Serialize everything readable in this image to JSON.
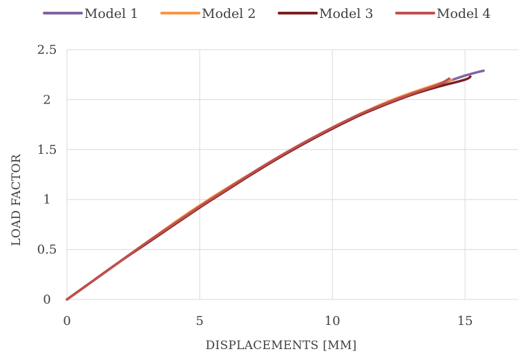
{
  "chart_data": {
    "type": "line",
    "title": "",
    "xlabel": "DISPLACEMENTS [MM]",
    "ylabel": "LOAD FACTOR",
    "xlim": [
      0,
      17
    ],
    "ylim": [
      0,
      2.5
    ],
    "xticks": [
      0,
      5,
      10,
      15
    ],
    "yticks": [
      0,
      0.5,
      1,
      1.5,
      2,
      2.5
    ],
    "xtick_labels": [
      "0",
      "5",
      "10",
      "15"
    ],
    "ytick_labels": [
      "0",
      "0.5",
      "1",
      "1.5",
      "2",
      "2.5"
    ],
    "grid": true,
    "legend_position": "top",
    "series": [
      {
        "name": "Model 1",
        "color": "#8064a2",
        "x": [
          0,
          1,
          2,
          3,
          4,
          5,
          6,
          7,
          8,
          9,
          10,
          11,
          12,
          13,
          14,
          15,
          15.7
        ],
        "y": [
          0,
          0.19,
          0.38,
          0.57,
          0.75,
          0.93,
          1.1,
          1.26,
          1.42,
          1.57,
          1.71,
          1.84,
          1.96,
          2.06,
          2.15,
          2.24,
          2.29
        ]
      },
      {
        "name": "Model 2",
        "color": "#f79646",
        "x": [
          0,
          1,
          2,
          3,
          4,
          5,
          6,
          7,
          8,
          9,
          10,
          11,
          12,
          13,
          14,
          14.5
        ],
        "y": [
          0,
          0.19,
          0.38,
          0.57,
          0.76,
          0.94,
          1.11,
          1.27,
          1.43,
          1.58,
          1.72,
          1.85,
          1.97,
          2.07,
          2.16,
          2.2
        ]
      },
      {
        "name": "Model 3",
        "color": "#7b2020",
        "x": [
          0,
          1,
          2,
          3,
          4,
          5,
          6,
          7,
          8,
          9,
          10,
          11,
          12,
          13,
          14,
          15,
          15.2
        ],
        "y": [
          0,
          0.19,
          0.38,
          0.56,
          0.74,
          0.92,
          1.09,
          1.26,
          1.42,
          1.57,
          1.71,
          1.84,
          1.95,
          2.05,
          2.13,
          2.2,
          2.23
        ]
      },
      {
        "name": "Model 4",
        "color": "#c0504d",
        "x": [
          0,
          1,
          2,
          3,
          4,
          5,
          6,
          7,
          8,
          9,
          10,
          11,
          12,
          13,
          14,
          14.4
        ],
        "y": [
          0,
          0.19,
          0.38,
          0.57,
          0.75,
          0.93,
          1.1,
          1.27,
          1.43,
          1.58,
          1.72,
          1.85,
          1.96,
          2.06,
          2.15,
          2.21
        ]
      }
    ]
  }
}
